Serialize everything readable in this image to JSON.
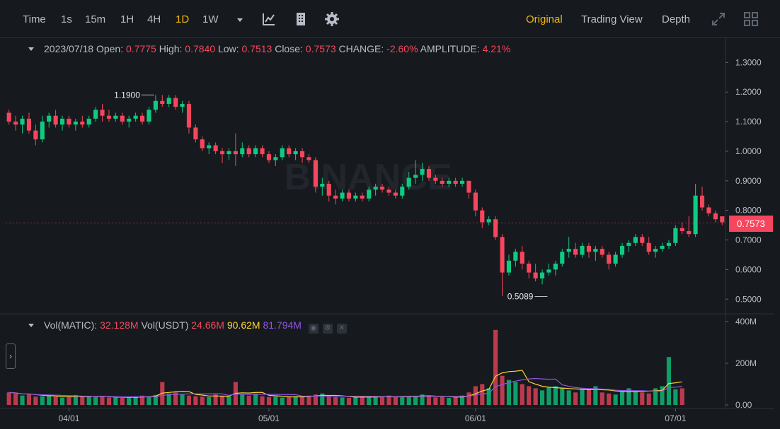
{
  "toolbar": {
    "intervals": [
      "Time",
      "1s",
      "15m",
      "1H",
      "4H",
      "1D",
      "1W"
    ],
    "active_interval": "1D",
    "views": [
      "Original",
      "Trading View",
      "Depth"
    ],
    "active_view": "Original"
  },
  "info": {
    "date": "2023/07/18",
    "open_label": "Open:",
    "open": "0.7775",
    "high_label": "High:",
    "high": "0.7840",
    "low_label": "Low:",
    "low": "0.7513",
    "close_label": "Close:",
    "close": "0.7573",
    "change_label": "CHANGE:",
    "change": "-2.60%",
    "amplitude_label": "AMPLITUDE:",
    "amplitude": "4.21%"
  },
  "volume_info": {
    "label_matic": "Vol(MATIC):",
    "value_matic": "32.128M",
    "label_usdt": "Vol(USDT)",
    "value_usdt": "24.66M",
    "ma1": "90.62M",
    "ma2": "81.794M"
  },
  "colors": {
    "up": "#0ecb81",
    "down": "#f6465d",
    "ma_yellow": "#fcd535",
    "ma_purple": "#9154e6",
    "accent": "#f0b90b"
  },
  "icons": [
    "dropdown-caret-icon",
    "indicator-icon",
    "building-icon",
    "gear-icon",
    "expand-icon",
    "grid-layout-icon"
  ],
  "watermark": "BINANCE",
  "chart_data": {
    "type": "candlestick",
    "price_ticks": [
      "1.3000",
      "1.2000",
      "1.1000",
      "1.0000",
      "0.9000",
      "0.8000",
      "0.7000",
      "0.6000",
      "0.5000"
    ],
    "price_range": [
      0.46,
      1.32
    ],
    "volume_ticks": [
      "400M",
      "200M",
      "0.00"
    ],
    "volume_range": [
      0,
      400
    ],
    "x_ticks": [
      "04/01",
      "05/01",
      "06/01",
      "07/01"
    ],
    "x_tick_index": [
      9,
      39,
      70,
      100
    ],
    "current_price": "0.7573",
    "high_marker": {
      "label": "1.1900",
      "index": 22,
      "value": 1.19
    },
    "low_marker": {
      "label": "0.5089",
      "index": 81,
      "value": 0.5089
    },
    "candles": [
      [
        1.13,
        1.14,
        1.09,
        1.1
      ],
      [
        1.1,
        1.12,
        1.07,
        1.09
      ],
      [
        1.09,
        1.12,
        1.06,
        1.11
      ],
      [
        1.11,
        1.13,
        1.06,
        1.07
      ],
      [
        1.07,
        1.09,
        1.02,
        1.04
      ],
      [
        1.04,
        1.12,
        1.03,
        1.1
      ],
      [
        1.1,
        1.13,
        1.08,
        1.12
      ],
      [
        1.12,
        1.14,
        1.08,
        1.09
      ],
      [
        1.09,
        1.12,
        1.07,
        1.11
      ],
      [
        1.11,
        1.12,
        1.08,
        1.09
      ],
      [
        1.09,
        1.11,
        1.07,
        1.1
      ],
      [
        1.1,
        1.12,
        1.08,
        1.09
      ],
      [
        1.09,
        1.12,
        1.08,
        1.11
      ],
      [
        1.11,
        1.15,
        1.1,
        1.14
      ],
      [
        1.14,
        1.16,
        1.1,
        1.12
      ],
      [
        1.12,
        1.14,
        1.1,
        1.11
      ],
      [
        1.11,
        1.13,
        1.1,
        1.12
      ],
      [
        1.12,
        1.13,
        1.09,
        1.1
      ],
      [
        1.1,
        1.12,
        1.08,
        1.11
      ],
      [
        1.11,
        1.13,
        1.1,
        1.12
      ],
      [
        1.12,
        1.13,
        1.09,
        1.1
      ],
      [
        1.1,
        1.15,
        1.09,
        1.14
      ],
      [
        1.14,
        1.19,
        1.13,
        1.17
      ],
      [
        1.17,
        1.19,
        1.15,
        1.16
      ],
      [
        1.16,
        1.19,
        1.15,
        1.18
      ],
      [
        1.18,
        1.19,
        1.14,
        1.15
      ],
      [
        1.15,
        1.17,
        1.13,
        1.16
      ],
      [
        1.16,
        1.17,
        1.06,
        1.08
      ],
      [
        1.08,
        1.09,
        1.03,
        1.04
      ],
      [
        1.04,
        1.05,
        1.0,
        1.01
      ],
      [
        1.01,
        1.03,
        0.99,
        1.02
      ],
      [
        1.02,
        1.03,
        0.99,
        1.0
      ],
      [
        1.0,
        1.01,
        0.96,
        0.99
      ],
      [
        0.99,
        1.01,
        0.97,
        1.0
      ],
      [
        1.0,
        1.06,
        0.95,
        0.99
      ],
      [
        0.99,
        1.03,
        0.98,
        1.01
      ],
      [
        1.01,
        1.02,
        0.98,
        0.99
      ],
      [
        0.99,
        1.02,
        0.98,
        1.01
      ],
      [
        1.01,
        1.02,
        0.98,
        0.99
      ],
      [
        0.99,
        1.0,
        0.96,
        0.97
      ],
      [
        0.97,
        0.99,
        0.95,
        0.98
      ],
      [
        0.98,
        1.02,
        0.97,
        1.01
      ],
      [
        1.01,
        1.02,
        0.98,
        0.99
      ],
      [
        0.99,
        1.01,
        0.97,
        1.0
      ],
      [
        1.0,
        1.01,
        0.96,
        0.98
      ],
      [
        0.98,
        0.99,
        0.96,
        0.97
      ],
      [
        0.97,
        0.98,
        0.86,
        0.88
      ],
      [
        0.88,
        0.91,
        0.85,
        0.89
      ],
      [
        0.89,
        0.9,
        0.83,
        0.85
      ],
      [
        0.85,
        0.87,
        0.82,
        0.84
      ],
      [
        0.84,
        0.87,
        0.83,
        0.86
      ],
      [
        0.86,
        0.87,
        0.83,
        0.84
      ],
      [
        0.84,
        0.86,
        0.83,
        0.85
      ],
      [
        0.85,
        0.86,
        0.83,
        0.84
      ],
      [
        0.84,
        0.88,
        0.83,
        0.87
      ],
      [
        0.87,
        0.89,
        0.85,
        0.88
      ],
      [
        0.88,
        0.89,
        0.86,
        0.87
      ],
      [
        0.87,
        0.88,
        0.85,
        0.86
      ],
      [
        0.86,
        0.87,
        0.84,
        0.85
      ],
      [
        0.85,
        0.89,
        0.84,
        0.88
      ],
      [
        0.88,
        0.93,
        0.87,
        0.91
      ],
      [
        0.91,
        0.97,
        0.89,
        0.92
      ],
      [
        0.92,
        0.96,
        0.9,
        0.94
      ],
      [
        0.94,
        0.95,
        0.9,
        0.91
      ],
      [
        0.91,
        0.92,
        0.89,
        0.9
      ],
      [
        0.9,
        0.91,
        0.88,
        0.89
      ],
      [
        0.89,
        0.91,
        0.88,
        0.9
      ],
      [
        0.9,
        0.91,
        0.88,
        0.89
      ],
      [
        0.89,
        0.91,
        0.88,
        0.9
      ],
      [
        0.9,
        0.9,
        0.84,
        0.86
      ],
      [
        0.86,
        0.87,
        0.78,
        0.8
      ],
      [
        0.8,
        0.81,
        0.74,
        0.76
      ],
      [
        0.76,
        0.78,
        0.75,
        0.77
      ],
      [
        0.77,
        0.78,
        0.7,
        0.71
      ],
      [
        0.71,
        0.72,
        0.51,
        0.59
      ],
      [
        0.59,
        0.65,
        0.58,
        0.63
      ],
      [
        0.63,
        0.67,
        0.61,
        0.66
      ],
      [
        0.66,
        0.68,
        0.6,
        0.62
      ],
      [
        0.62,
        0.63,
        0.57,
        0.59
      ],
      [
        0.59,
        0.62,
        0.56,
        0.57
      ],
      [
        0.57,
        0.6,
        0.55,
        0.59
      ],
      [
        0.59,
        0.62,
        0.58,
        0.6
      ],
      [
        0.6,
        0.63,
        0.58,
        0.62
      ],
      [
        0.62,
        0.67,
        0.61,
        0.66
      ],
      [
        0.66,
        0.71,
        0.64,
        0.67
      ],
      [
        0.67,
        0.69,
        0.64,
        0.65
      ],
      [
        0.65,
        0.69,
        0.64,
        0.68
      ],
      [
        0.68,
        0.69,
        0.64,
        0.66
      ],
      [
        0.66,
        0.68,
        0.63,
        0.67
      ],
      [
        0.67,
        0.68,
        0.64,
        0.65
      ],
      [
        0.65,
        0.66,
        0.6,
        0.62
      ],
      [
        0.62,
        0.66,
        0.61,
        0.65
      ],
      [
        0.65,
        0.69,
        0.64,
        0.68
      ],
      [
        0.68,
        0.7,
        0.66,
        0.69
      ],
      [
        0.69,
        0.72,
        0.68,
        0.71
      ],
      [
        0.71,
        0.72,
        0.68,
        0.69
      ],
      [
        0.69,
        0.71,
        0.65,
        0.66
      ],
      [
        0.66,
        0.68,
        0.64,
        0.67
      ],
      [
        0.67,
        0.69,
        0.66,
        0.68
      ],
      [
        0.68,
        0.7,
        0.67,
        0.69
      ],
      [
        0.69,
        0.75,
        0.68,
        0.74
      ],
      [
        0.74,
        0.76,
        0.72,
        0.73
      ],
      [
        0.73,
        0.78,
        0.71,
        0.72
      ],
      [
        0.72,
        0.89,
        0.71,
        0.85
      ],
      [
        0.85,
        0.88,
        0.8,
        0.81
      ],
      [
        0.81,
        0.82,
        0.78,
        0.79
      ],
      [
        0.79,
        0.8,
        0.76,
        0.77
      ],
      [
        0.78,
        0.78,
        0.75,
        0.76
      ]
    ],
    "volumes": [
      60,
      55,
      45,
      50,
      40,
      42,
      45,
      40,
      35,
      38,
      48,
      40,
      42,
      38,
      40,
      36,
      38,
      34,
      36,
      40,
      45,
      42,
      48,
      110,
      55,
      60,
      50,
      45,
      42,
      40,
      38,
      50,
      42,
      40,
      110,
      50,
      45,
      55,
      42,
      38,
      40,
      35,
      40,
      42,
      38,
      45,
      50,
      55,
      40,
      38,
      36,
      34,
      40,
      42,
      38,
      36,
      40,
      45,
      38,
      42,
      40,
      44,
      50,
      42,
      36,
      38,
      34,
      40,
      45,
      60,
      90,
      100,
      80,
      360,
      140,
      120,
      110,
      100,
      90,
      80,
      70,
      85,
      90,
      80,
      70,
      60,
      75,
      80,
      90,
      60,
      55,
      50,
      70,
      80,
      65,
      60,
      55,
      80,
      90,
      230,
      75,
      80
    ]
  }
}
